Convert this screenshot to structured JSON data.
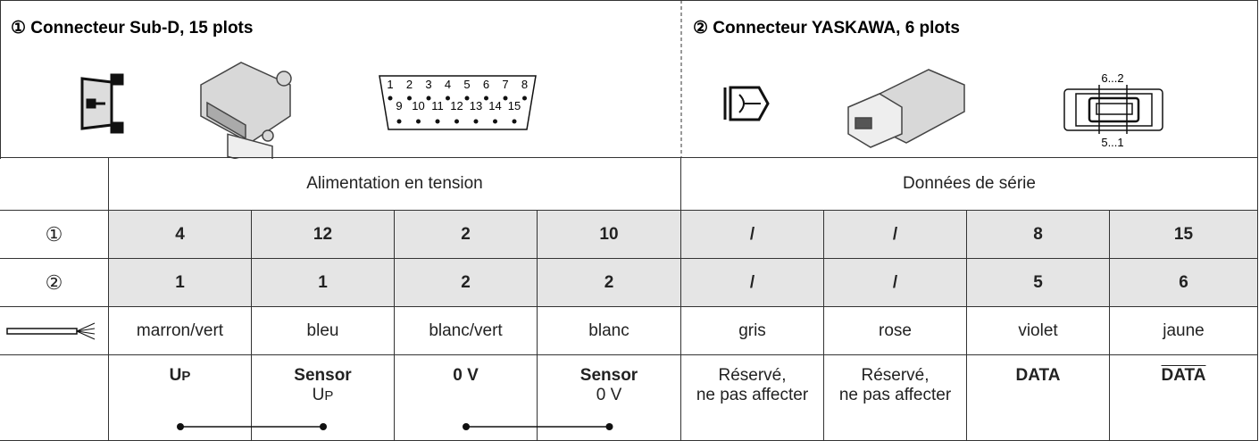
{
  "header": {
    "left": {
      "title": "① Connecteur Sub-D, 15 plots",
      "pins_top": [
        "1",
        "2",
        "3",
        "4",
        "5",
        "6",
        "7",
        "8"
      ],
      "pins_bottom": [
        "9",
        "10",
        "11",
        "12",
        "13",
        "14",
        "15"
      ]
    },
    "right": {
      "title": "② Connecteur YASKAWA, 6 plots",
      "pin_top": "6...2",
      "pin_bottom": "5...1"
    }
  },
  "table": {
    "groups": [
      "Alimentation en tension",
      "Données de série"
    ],
    "rows": [
      {
        "label": "①",
        "cells": [
          "4",
          "12",
          "2",
          "10",
          "/",
          "/",
          "8",
          "15"
        ]
      },
      {
        "label": "②",
        "cells": [
          "1",
          "1",
          "2",
          "2",
          "/",
          "/",
          "5",
          "6"
        ]
      }
    ],
    "colors": [
      "marron/vert",
      "bleu",
      "blanc/vert",
      "blanc",
      "gris",
      "rose",
      "violet",
      "jaune"
    ],
    "signals": [
      {
        "text": "U",
        "sub": "P"
      },
      {
        "text": "Sensor",
        "note": "U",
        "note_sub": "P"
      },
      {
        "text": "0 V"
      },
      {
        "text": "Sensor",
        "note": "0 V"
      },
      {
        "lines": [
          "Réservé,",
          "ne pas affecter"
        ]
      },
      {
        "lines": [
          "Réservé,",
          "ne pas affecter"
        ]
      },
      {
        "text": "DATA"
      },
      {
        "text": "DATA",
        "overline": true
      }
    ]
  }
}
